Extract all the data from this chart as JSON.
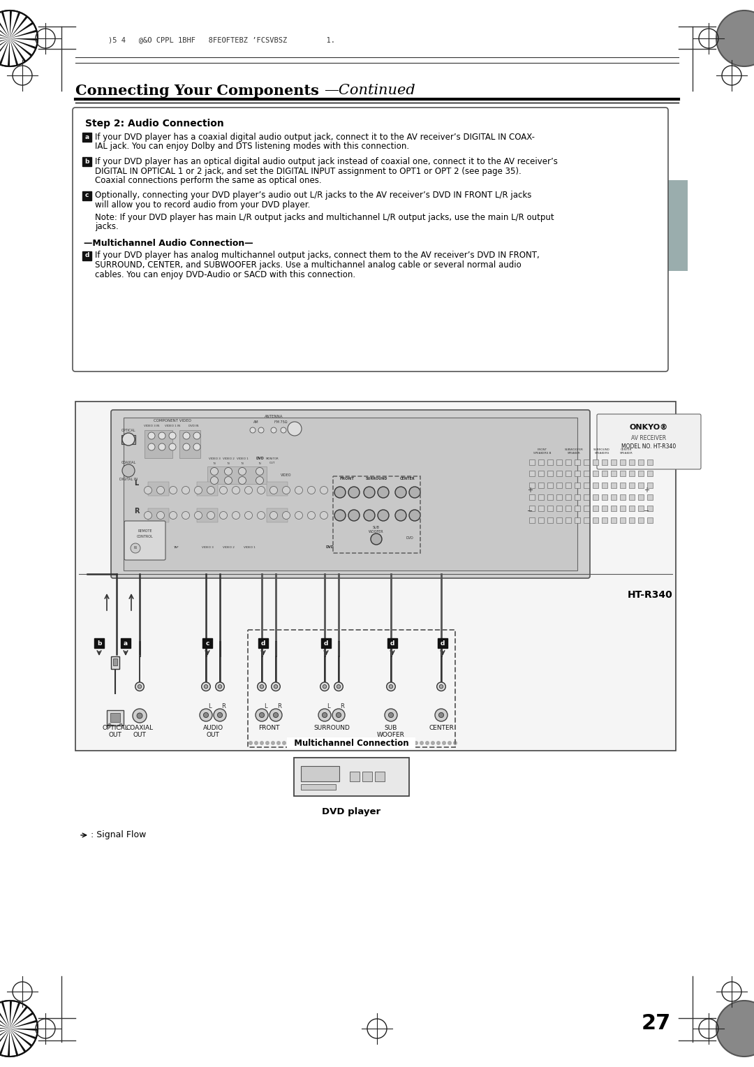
{
  "page_bg": "#ffffff",
  "header_text": ")5 4   @&O CPPL 1BHF   8FEOFTEBZ ’FCSVBSZ         1.",
  "title_bold": "Connecting Your Components",
  "title_italic": "—Continued",
  "section_title": "Step 2: Audio Connection",
  "item_a_text1": "If your DVD player has a coaxial digital audio output jack, connect it to the AV receiver’s DIGITAL IN COAX-",
  "item_a_text2": "IAL jack. You can enjoy Dolby and DTS listening modes with this connection.",
  "item_b_text1": "If your DVD player has an optical digital audio output jack instead of coaxial one, connect it to the AV receiver’s",
  "item_b_text2": "DIGITAL IN OPTICAL 1 or 2 jack, and set the DIGITAL INPUT assignment to OPT1 or OPT 2 (see page 35).",
  "item_b_text3": "Coaxial connections perform the same as optical ones.",
  "item_c_text1": "Optionally, connecting your DVD player’s audio out L/R jacks to the AV receiver’s DVD IN FRONT L/R jacks",
  "item_c_text2": "will allow you to record audio from your DVD player.",
  "item_c_note1": "Note: If your DVD player has main L/R output jacks and multichannel L/R output jacks, use the main L/R output",
  "item_c_note2": "jacks.",
  "multichannel_header": "—Multichannel Audio Connection—",
  "item_d_text1": "If your DVD player has analog multichannel output jacks, connect them to the AV receiver’s DVD IN FRONT,",
  "item_d_text2": "SURROUND, CENTER, and SUBWOOFER jacks. Use a multichannel analog cable or several normal audio",
  "item_d_text3": "cables. You can enjoy DVD-Audio or SACD with this connection.",
  "diagram_ht_label": "HT-R340",
  "bottom_labels": [
    "OPTICAL\nOUT",
    "COAXIAL\nOUT",
    "AUDIO\nOUT",
    "FRONT",
    "SURROUND",
    "SUB\nWOOFER",
    "CENTER"
  ],
  "multichannel_label": "Multichannel Connection",
  "dvd_player_label": "DVD player",
  "signal_flow_label": ": Signal Flow",
  "page_number": "27",
  "tab_color": "#9aadad",
  "box_border_color": "#555555",
  "line_color": "#333333",
  "dark_gray": "#404040",
  "medium_gray": "#888888",
  "recv_bg": "#d8d8d8",
  "recv_dark": "#b0b0b0"
}
